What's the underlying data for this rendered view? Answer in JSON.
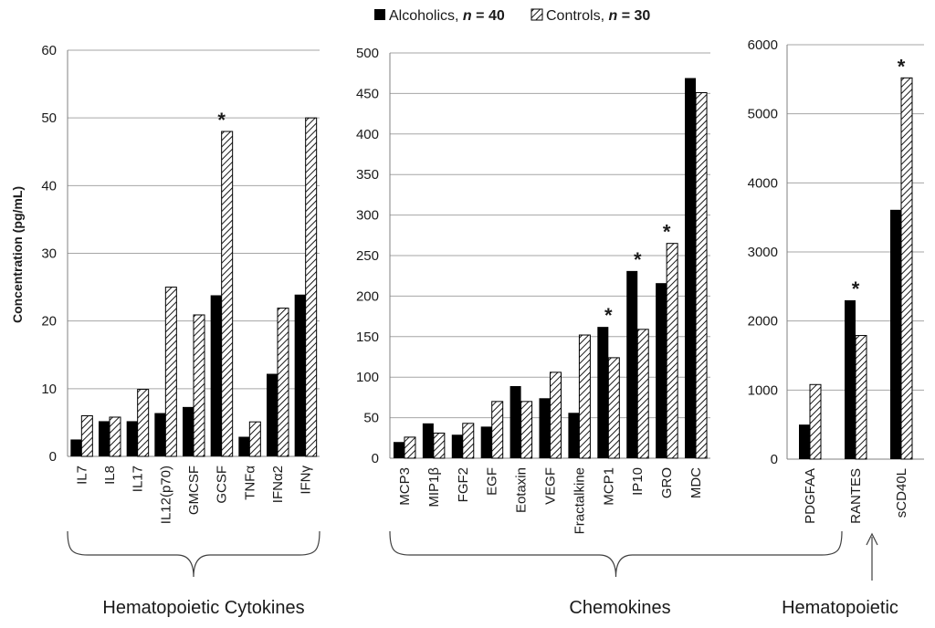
{
  "chart_data": {
    "type": "bar",
    "ylabel": "Concentration (pg/mL)",
    "legend": {
      "position": "top-center",
      "series": [
        {
          "name": "Alcoholics",
          "n_label": "n",
          "n_eq": " = 40",
          "pattern": "solid",
          "color": "#000000"
        },
        {
          "name": "Controls",
          "n_label": "n",
          "n_eq": " = 30",
          "pattern": "hatched",
          "color": "#ffffff"
        }
      ]
    },
    "significance_marker": "*",
    "panels": [
      {
        "group_label": "Hematopoietic Cytokines",
        "ylim": [
          0,
          60
        ],
        "yticks": [
          0,
          10,
          20,
          30,
          40,
          50,
          60
        ],
        "categories": [
          "IL7",
          "IL8",
          "IL17",
          "IL12(p70)",
          "GMCSF",
          "GCSF",
          "TNFα",
          "IFNα2",
          "IFNγ"
        ],
        "series": [
          {
            "name": "Alcoholics",
            "values": [
              2.5,
              5.2,
              5.2,
              6.4,
              7.3,
              23.8,
              2.9,
              12.2,
              23.9
            ]
          },
          {
            "name": "Controls",
            "values": [
              6.0,
              5.8,
              9.9,
              25.0,
              20.9,
              48.0,
              5.1,
              21.9,
              50.0
            ]
          }
        ],
        "significant": [
          "GCSF"
        ]
      },
      {
        "group_label": "Chemokines",
        "ylim": [
          0,
          500
        ],
        "yticks": [
          0,
          50,
          100,
          150,
          200,
          250,
          300,
          350,
          400,
          450,
          500
        ],
        "categories": [
          "MCP3",
          "MIP1β",
          "FGF2",
          "EGF",
          "Eotaxin",
          "VEGF",
          "Fractalkine",
          "MCP1",
          "IP10",
          "GRO",
          "MDC"
        ],
        "series": [
          {
            "name": "Alcoholics",
            "values": [
              20,
              43,
              29,
              39,
              89,
              74,
              56,
              162,
              231,
              216,
              469
            ]
          },
          {
            "name": "Controls",
            "values": [
              26,
              31,
              43,
              70,
              70,
              106,
              152,
              124,
              159,
              265,
              451
            ]
          }
        ],
        "significant": [
          "MCP1",
          "IP10",
          "GRO"
        ]
      },
      {
        "group_label": "Hematopoietic",
        "ylim": [
          0,
          6000
        ],
        "yticks": [
          0,
          1000,
          2000,
          3000,
          4000,
          5000,
          6000
        ],
        "categories": [
          "PDGFAA",
          "RANTES",
          "sCD40L"
        ],
        "series": [
          {
            "name": "Alcoholics",
            "values": [
              500,
              2300,
              3610
            ]
          },
          {
            "name": "Controls",
            "values": [
              1080,
              1790,
              5520
            ]
          }
        ],
        "significant": [
          "RANTES",
          "sCD40L"
        ]
      }
    ]
  }
}
